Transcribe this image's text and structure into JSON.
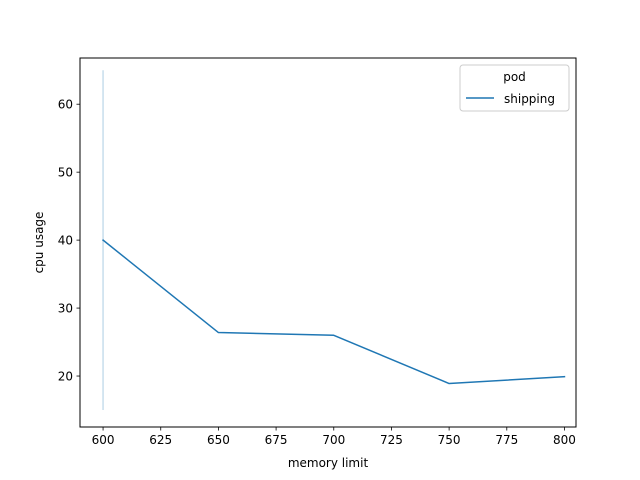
{
  "chart_data": {
    "type": "line",
    "title": "",
    "xlabel": "memory limit",
    "ylabel": "cpu usage",
    "xlim": [
      590,
      805
    ],
    "ylim": [
      12.5,
      66.8
    ],
    "xticks": [
      600,
      625,
      650,
      675,
      700,
      725,
      750,
      775,
      800
    ],
    "yticks": [
      20,
      30,
      40,
      50,
      60
    ],
    "legend": {
      "title": "pod",
      "position": "top-right"
    },
    "series": [
      {
        "name": "shipping",
        "color": "#1f77b4",
        "x": [
          600,
          650,
          700,
          750,
          800
        ],
        "y": [
          40.0,
          26.4,
          26.0,
          18.9,
          19.9
        ],
        "ci": [
          {
            "x": 600,
            "low": 15.0,
            "high": 65.0
          }
        ]
      }
    ]
  }
}
